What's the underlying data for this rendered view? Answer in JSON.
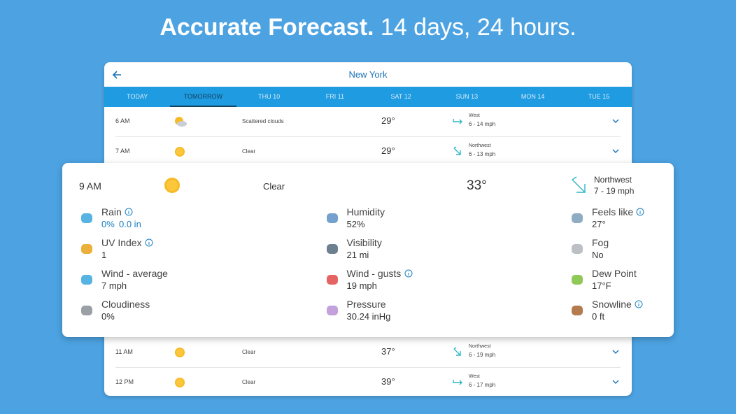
{
  "headline": {
    "bold": "Accurate Forecast.",
    "rest": "14 days, 24 hours."
  },
  "header": {
    "city": "New York"
  },
  "tabs": [
    "TODAY",
    "TOMORROW",
    "THU 10",
    "FRI 11",
    "SAT 12",
    "SUN 13",
    "MON 14",
    "TUE 15"
  ],
  "selected_tab": 1,
  "hours": [
    {
      "time": "6 AM",
      "icon": "clouds",
      "condition": "Scattered clouds",
      "temp": "29°",
      "wind_dir": "West",
      "wind_speed": "6 - 14 mph"
    },
    {
      "time": "7 AM",
      "icon": "sun",
      "condition": "Clear",
      "temp": "29°",
      "wind_dir": "Northwest",
      "wind_speed": "6 - 13 mph"
    },
    {
      "time": "11 AM",
      "icon": "sun",
      "condition": "Clear",
      "temp": "37°",
      "wind_dir": "Northwest",
      "wind_speed": "6 - 19 mph"
    },
    {
      "time": "12 PM",
      "icon": "sun",
      "condition": "Clear",
      "temp": "39°",
      "wind_dir": "West",
      "wind_speed": "6 - 17 mph"
    }
  ],
  "detail": {
    "time": "9 AM",
    "condition": "Clear",
    "temp": "33°",
    "wind_dir": "Northwest",
    "wind_speed": "7 - 19 mph",
    "items": [
      {
        "label": "Rain",
        "info": true,
        "value": "0%",
        "value2": "0.0 in",
        "value_color": "#1a7fc1"
      },
      {
        "label": "Humidity",
        "info": false,
        "value": "52%"
      },
      {
        "label": "Feels like",
        "info": true,
        "value": "27°"
      },
      {
        "label": "UV Index",
        "info": true,
        "value": "1"
      },
      {
        "label": "Visibility",
        "info": false,
        "value": "21 mi"
      },
      {
        "label": "Fog",
        "info": false,
        "value": "No"
      },
      {
        "label": "Wind - average",
        "info": false,
        "value": "7 mph"
      },
      {
        "label": "Wind - gusts",
        "info": true,
        "value": "19 mph"
      },
      {
        "label": "Dew Point",
        "info": false,
        "value": "17°F"
      },
      {
        "label": "Cloudiness",
        "info": false,
        "value": "0%"
      },
      {
        "label": "Pressure",
        "info": false,
        "value": "30.24 inHg"
      },
      {
        "label": "Snowline",
        "info": true,
        "value": "0 ft"
      }
    ]
  }
}
